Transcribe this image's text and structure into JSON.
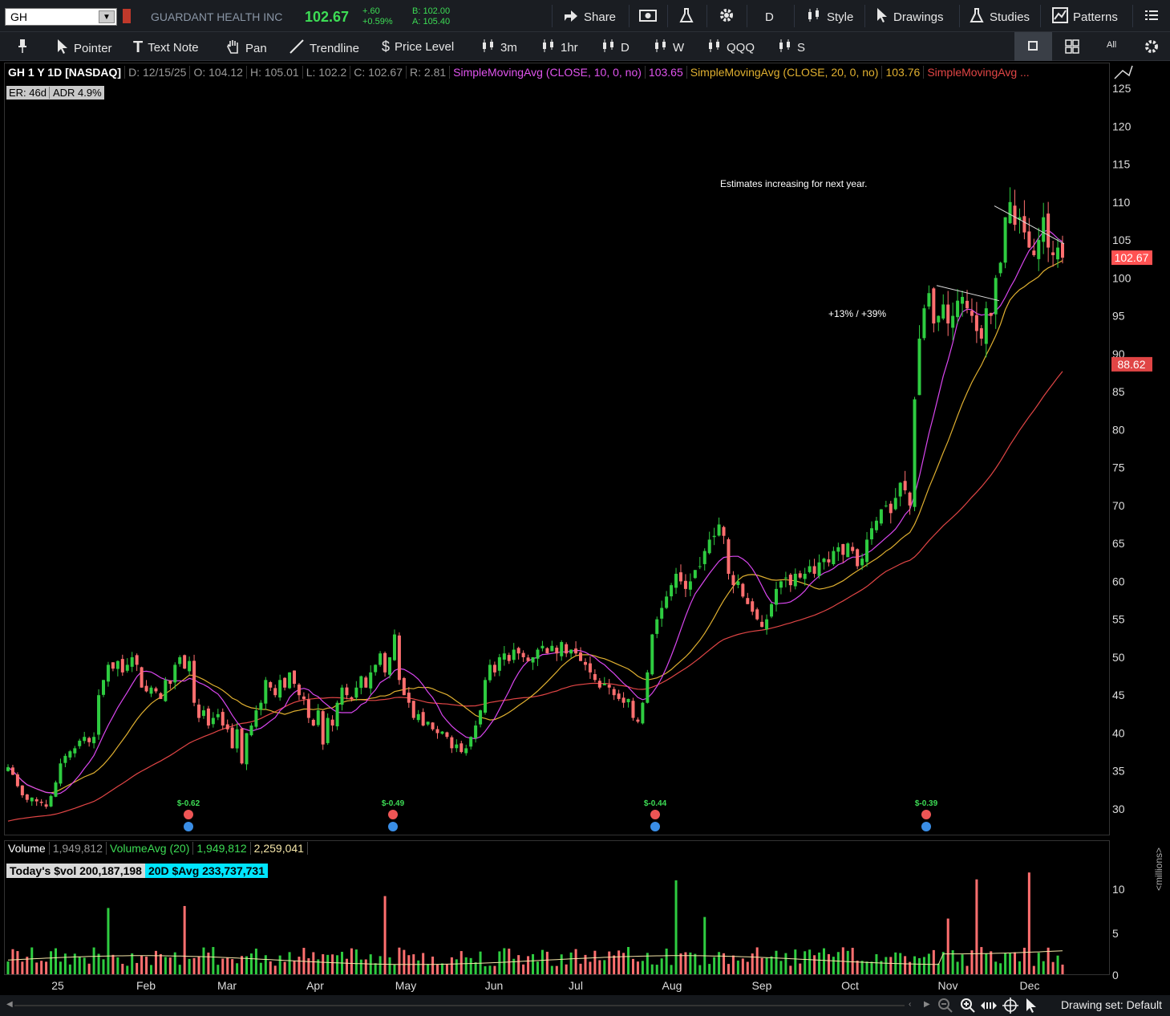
{
  "topbar": {
    "symbol": "GH",
    "company": "GUARDANT HEALTH INC",
    "last": "102.67",
    "change": "+.60",
    "change_pct": "+0.59%",
    "bid": "B: 102.00",
    "ask": "A: 105.40",
    "share_label": "Share",
    "aggregation": "D",
    "style_label": "Style",
    "drawings_label": "Drawings",
    "studies_label": "Studies",
    "patterns_label": "Patterns"
  },
  "drawbar": {
    "pointer": "Pointer",
    "text_note": "Text Note",
    "pan": "Pan",
    "trendline": "Trendline",
    "price_level": "Price Level",
    "tf_3m": "3m",
    "tf_1hr": "1hr",
    "tf_d": "D",
    "tf_w": "W",
    "tf_qqq": "QQQ",
    "tf_s": "S",
    "all_label": "All"
  },
  "info": {
    "title": "GH 1 Y 1D [NASDAQ]",
    "date": "D: 12/15/25",
    "open": "O: 104.12",
    "high": "H: 105.01",
    "low": "L: 102.2",
    "close": "C: 102.67",
    "range": "R: 2.81",
    "sma10_label": "SimpleMovingAvg (CLOSE, 10, 0, no)",
    "sma10_value": "103.65",
    "sma20_label": "SimpleMovingAvg (CLOSE, 20, 0, no)",
    "sma20_value": "103.76",
    "sma50_label": "SimpleMovingAvg ...",
    "er": "ER: 46d",
    "adr": "ADR 4.9%"
  },
  "volume_info": {
    "label": "Volume",
    "value": "1,949,812",
    "avg_label": "VolumeAvg (20)",
    "avg_value": "1,949,812",
    "avg2_value": "2,259,041",
    "today_dvol": "Today's $vol 200,187,198",
    "avg_dvol": "20D $Avg 233,737,731",
    "unit_label": "<millions>"
  },
  "annotations": {
    "note1": "Estimates increasing for next year.",
    "note2": "+13% / +39%"
  },
  "bottom": {
    "drawing_set": "Drawing set: Default"
  },
  "colors": {
    "up": "#2ecc40",
    "down": "#ff6f6f",
    "sma10": "#d946ef",
    "sma20": "#e0b030",
    "sma50": "#e04545",
    "last_price_tag": "#ff5252"
  },
  "chart_data": {
    "type": "candlestick",
    "y_ticks": [
      125,
      120,
      115,
      110,
      105,
      100,
      95,
      90,
      85,
      80,
      75,
      70,
      65,
      60,
      55,
      50,
      45,
      40,
      35,
      30
    ],
    "ylim": [
      27,
      127
    ],
    "x_labels": [
      "25",
      "Feb",
      "Mar",
      "Apr",
      "May",
      "Jun",
      "Jul",
      "Aug",
      "Sep",
      "Oct",
      "Nov",
      "Dec"
    ],
    "last_price_tag": "102.67",
    "sma50_tag": "88.62",
    "closes": [
      35.5,
      34.5,
      33,
      31.8,
      31.2,
      31.5,
      31,
      30.8,
      30.3,
      31.7,
      33.5,
      36,
      37,
      37.6,
      38,
      39,
      39.5,
      38.8,
      39.5,
      45,
      47,
      49,
      48.5,
      49.5,
      48,
      49,
      50,
      49,
      46,
      45.5,
      46,
      45.5,
      44.5,
      47,
      46.5,
      49,
      50,
      48.5,
      49.5,
      44,
      42,
      43,
      41,
      42,
      42.5,
      41,
      40.5,
      38,
      40.5,
      36,
      40,
      41,
      43,
      44,
      47,
      46,
      45,
      47,
      46,
      48,
      46.5,
      45,
      44.5,
      42,
      41,
      43,
      38.5,
      42,
      41,
      44,
      46,
      45,
      44.5,
      46,
      47.5,
      46,
      48,
      49,
      50.5,
      48,
      50,
      53,
      47,
      45,
      44,
      42,
      42.5,
      41,
      41.5,
      40.5,
      40,
      40.2,
      39.5,
      38,
      38.5,
      37.5,
      38,
      39.5,
      41,
      43,
      47,
      49,
      48,
      50,
      50.5,
      49.5,
      51,
      50.5,
      50,
      49.5,
      50,
      51,
      51.5,
      50.5,
      51.5,
      50.5,
      52,
      50.5,
      51,
      50.5,
      49.5,
      49,
      48,
      47,
      46,
      46.5,
      46,
      45,
      44.5,
      44,
      44.5,
      42,
      41.5,
      44,
      48,
      53,
      55,
      56.5,
      58,
      59.5,
      61,
      60,
      59,
      60,
      61.5,
      62,
      64,
      65.5,
      66,
      67.5,
      66,
      61,
      59.5,
      60,
      58,
      57,
      56,
      55,
      54,
      55,
      57,
      59,
      60,
      60.5,
      59.5,
      61,
      60.5,
      61,
      62,
      61,
      62.5,
      63,
      62.5,
      64,
      64.5,
      63.5,
      65,
      64,
      62,
      63,
      65.5,
      67,
      68,
      69.5,
      70,
      69,
      71,
      73,
      72,
      70,
      84,
      92,
      96,
      98,
      94,
      95,
      96.5,
      94,
      95,
      97,
      97.5,
      96,
      95,
      93,
      92,
      96,
      95,
      100,
      102,
      108,
      110,
      107,
      108,
      106,
      104,
      103,
      105,
      108,
      104,
      103,
      104,
      102.67
    ]
  }
}
